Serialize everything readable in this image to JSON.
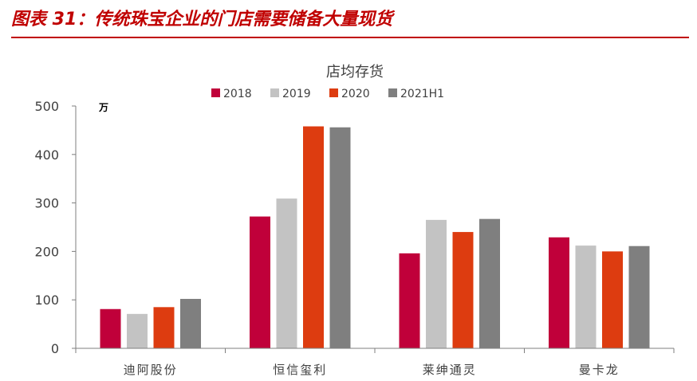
{
  "figure": {
    "title": "图表 31：传统珠宝企业的门店需要储备大量现货",
    "accent": "#c00000"
  },
  "chart_data": {
    "type": "bar",
    "title": "店均存货",
    "unit": "万",
    "categories": [
      "迪阿股份",
      "恒信玺利",
      "莱绅通灵",
      "曼卡龙"
    ],
    "series": [
      {
        "name": "2018",
        "color": "#c0003a",
        "values": [
          81,
          272,
          196,
          229
        ]
      },
      {
        "name": "2019",
        "color": "#c3c3c3",
        "values": [
          71,
          309,
          265,
          212
        ]
      },
      {
        "name": "2020",
        "color": "#dd3c10",
        "values": [
          85,
          458,
          240,
          200
        ]
      },
      {
        "name": "2021H1",
        "color": "#7f7f7f",
        "values": [
          102,
          456,
          267,
          211
        ]
      }
    ],
    "ylim": [
      0,
      500
    ],
    "yticks": [
      0,
      100,
      200,
      300,
      400,
      500
    ],
    "grid": false,
    "legend_position": "top-center"
  }
}
